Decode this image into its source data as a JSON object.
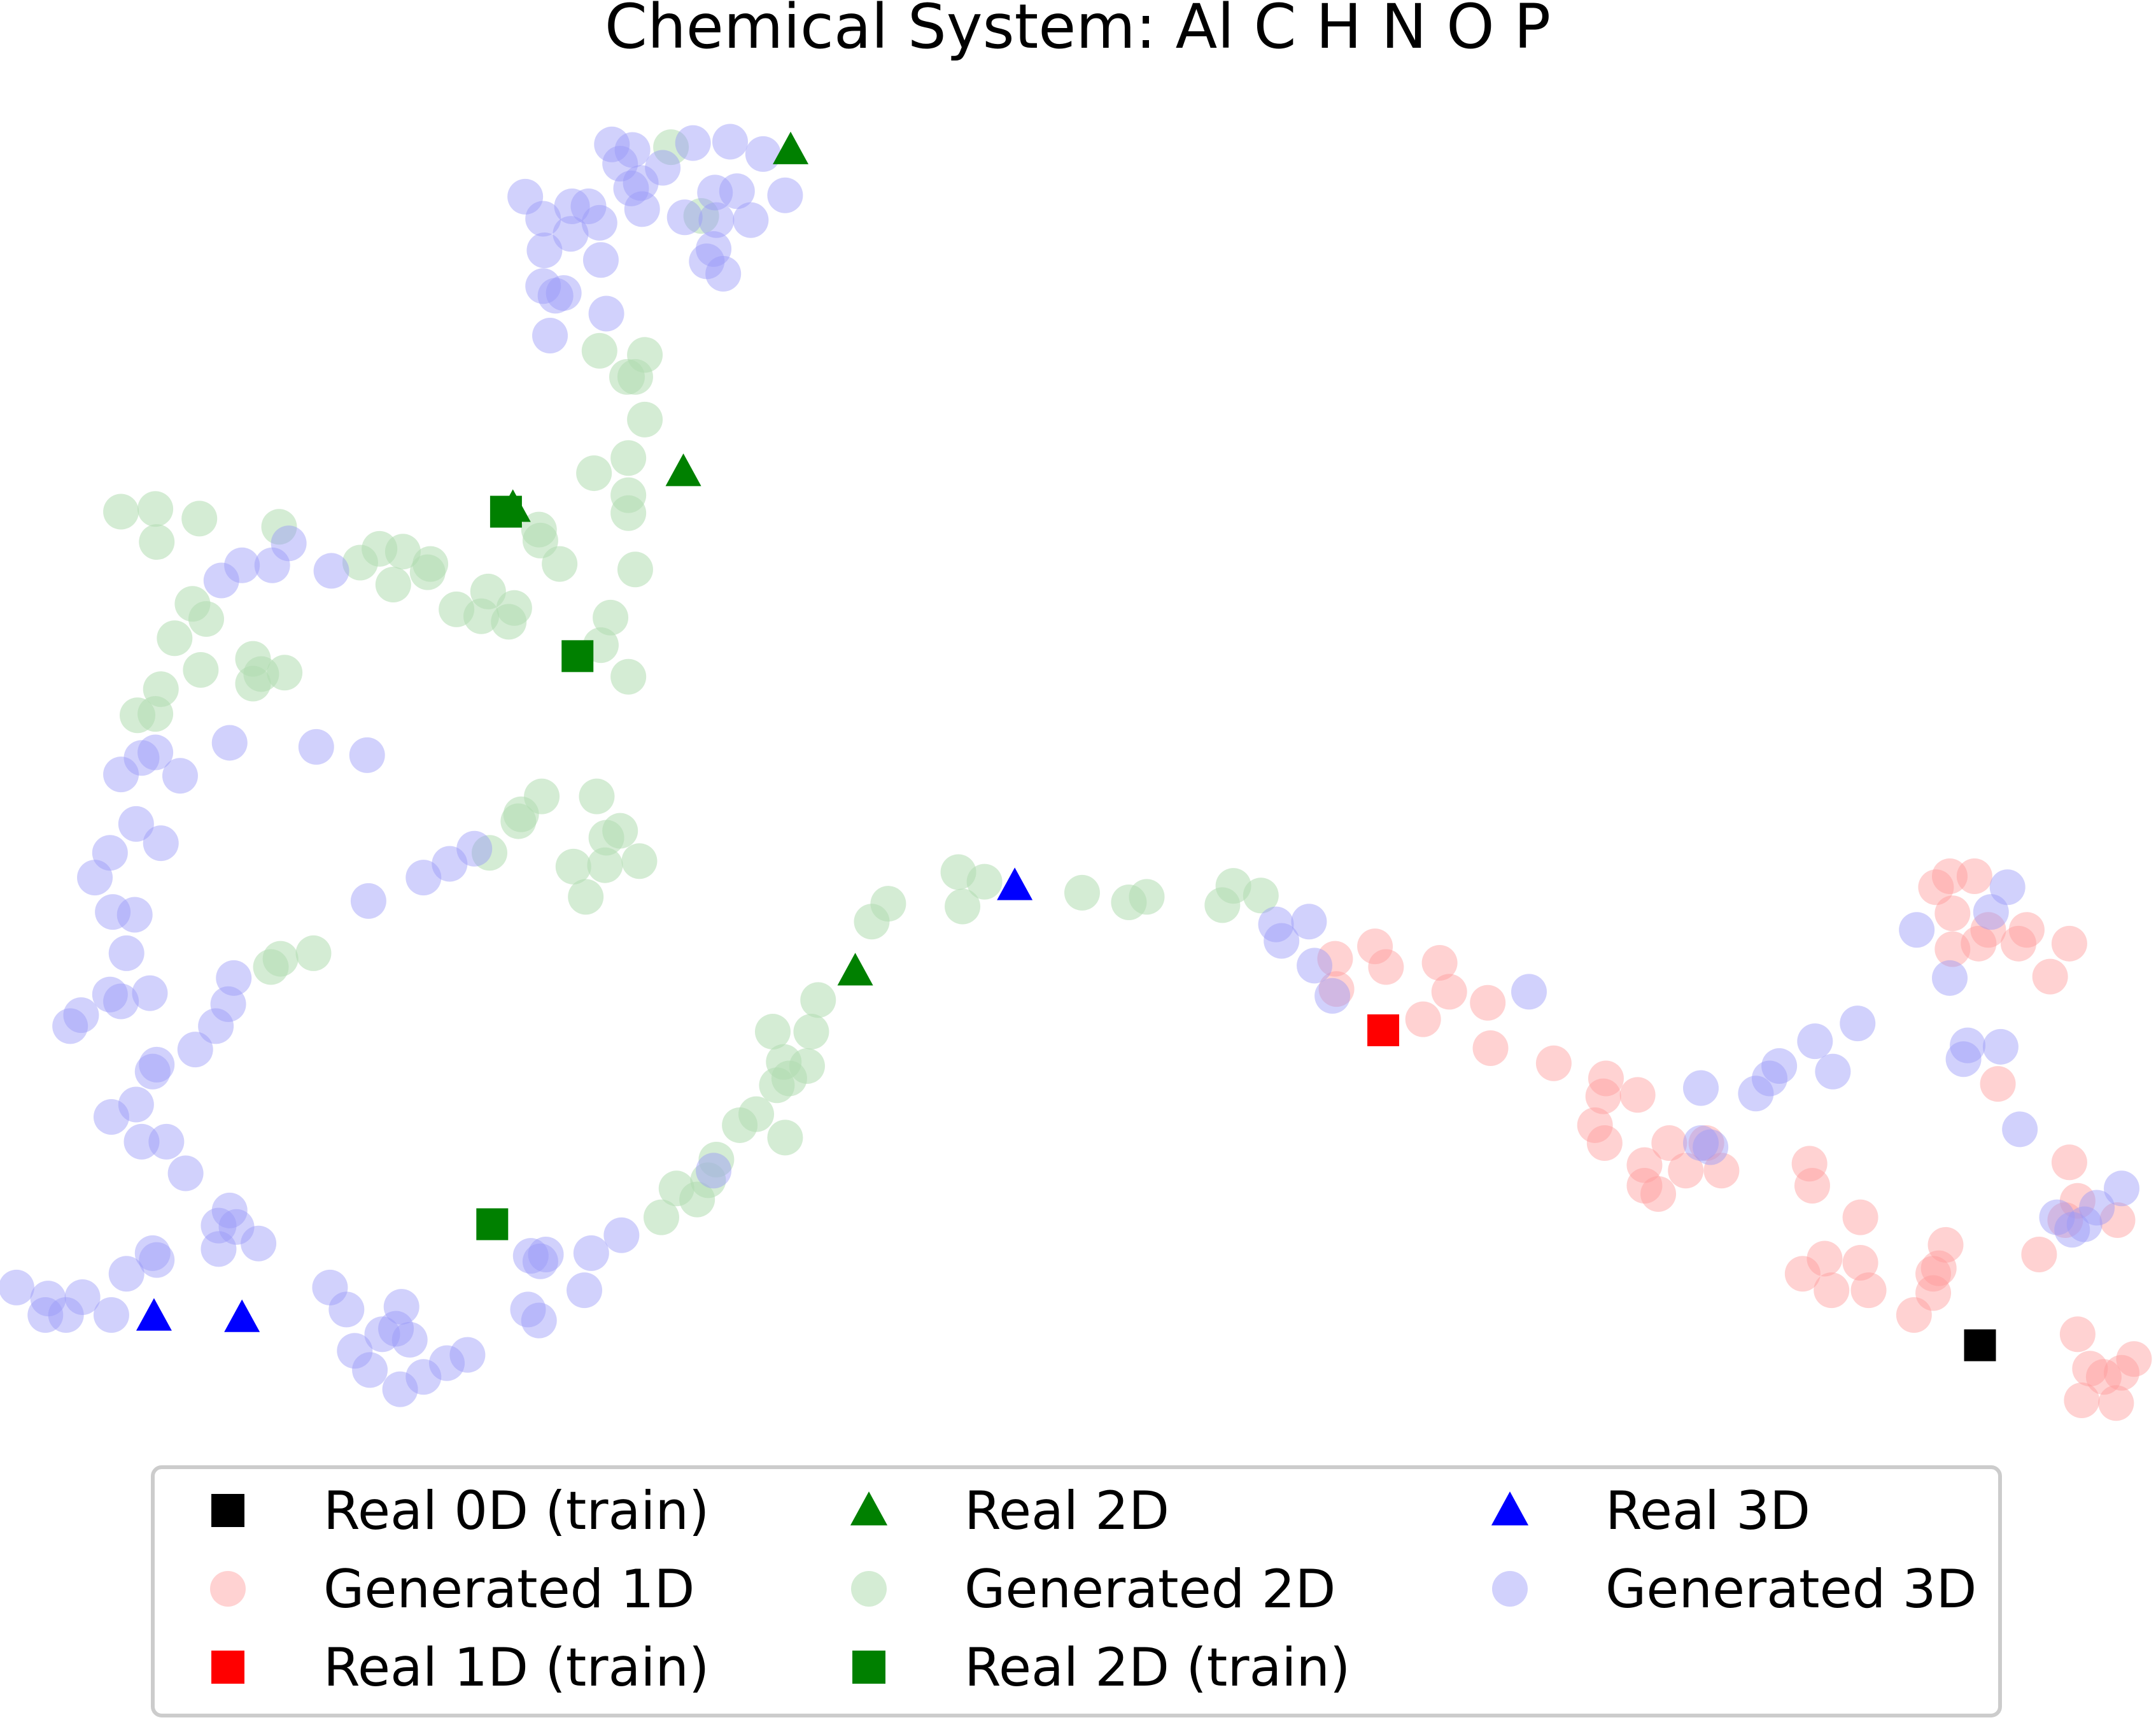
{
  "chart_data": {
    "type": "scatter",
    "title": "Chemical System: Al C H N O P",
    "xlabel": "",
    "ylabel": "",
    "axes_visible": false,
    "grid": false,
    "legend_position": "bottom",
    "legend_columns": 3,
    "xlim": [
      0,
      1568
    ],
    "ylim": [
      1050,
      0
    ],
    "series": [
      {
        "name": "Generated 1D",
        "marker": "circle",
        "color": "#ff9b9b",
        "points": [
          [
            1418,
            637
          ],
          [
            1408,
            645
          ],
          [
            1436,
            637
          ],
          [
            1420,
            664
          ],
          [
            1446,
            676
          ],
          [
            1474,
            676
          ],
          [
            1505,
            686
          ],
          [
            1420,
            690
          ],
          [
            1439,
            686
          ],
          [
            1468,
            686
          ],
          [
            1491,
            710
          ],
          [
            971,
            697
          ],
          [
            1000,
            688
          ],
          [
            1008,
            703
          ],
          [
            1047,
            700
          ],
          [
            1054,
            721
          ],
          [
            972,
            719
          ],
          [
            1035,
            741
          ],
          [
            1082,
            729
          ],
          [
            1084,
            762
          ],
          [
            1130,
            773
          ],
          [
            1168,
            784
          ],
          [
            1166,
            797
          ],
          [
            1191,
            796
          ],
          [
            1160,
            818
          ],
          [
            1167,
            831
          ],
          [
            1214,
            831
          ],
          [
            1241,
            831
          ],
          [
            1196,
            847
          ],
          [
            1226,
            851
          ],
          [
            1252,
            851
          ],
          [
            1196,
            862
          ],
          [
            1206,
            868
          ],
          [
            1453,
            788
          ],
          [
            1505,
            845
          ],
          [
            1316,
            846
          ],
          [
            1318,
            862
          ],
          [
            1353,
            885
          ],
          [
            1311,
            926
          ],
          [
            1327,
            915
          ],
          [
            1353,
            918
          ],
          [
            1332,
            938
          ],
          [
            1359,
            938
          ],
          [
            1415,
            905
          ],
          [
            1406,
            926
          ],
          [
            1410,
            922
          ],
          [
            1406,
            940
          ],
          [
            1392,
            956
          ],
          [
            1483,
            912
          ],
          [
            1502,
            887
          ],
          [
            1511,
            873
          ],
          [
            1540,
            887
          ],
          [
            1511,
            970
          ],
          [
            1520,
            995
          ],
          [
            1530,
            1001
          ],
          [
            1552,
            988
          ],
          [
            1543,
            998
          ],
          [
            1514,
            1018
          ],
          [
            1539,
            1020
          ]
        ]
      },
      {
        "name": "Generated 2D",
        "marker": "circle",
        "color": "#b0dcb0",
        "points": [
          [
            488,
            107
          ],
          [
            510,
            157
          ],
          [
            436,
            255
          ],
          [
            469,
            258
          ],
          [
            456,
            274
          ],
          [
            462,
            274
          ],
          [
            469,
            305
          ],
          [
            457,
            333
          ],
          [
            432,
            344
          ],
          [
            457,
            360
          ],
          [
            457,
            373
          ],
          [
            462,
            414
          ],
          [
            444,
            449
          ],
          [
            437,
            469
          ],
          [
            457,
            492
          ],
          [
            88,
            372
          ],
          [
            113,
            370
          ],
          [
            145,
            377
          ],
          [
            114,
            394
          ],
          [
            203,
            383
          ],
          [
            262,
            409
          ],
          [
            276,
            399
          ],
          [
            293,
            401
          ],
          [
            286,
            425
          ],
          [
            313,
            410
          ],
          [
            311,
            416
          ],
          [
            332,
            443
          ],
          [
            355,
            430
          ],
          [
            350,
            448
          ],
          [
            374,
            442
          ],
          [
            370,
            452
          ],
          [
            392,
            385
          ],
          [
            393,
            393
          ],
          [
            407,
            410
          ],
          [
            140,
            439
          ],
          [
            150,
            450
          ],
          [
            127,
            464
          ],
          [
            146,
            487
          ],
          [
            117,
            501
          ],
          [
            100,
            520
          ],
          [
            113,
            519
          ],
          [
            184,
            479
          ],
          [
            207,
            489
          ],
          [
            184,
            497
          ],
          [
            190,
            490
          ],
          [
            394,
            579
          ],
          [
            379,
            592
          ],
          [
            377,
            597
          ],
          [
            434,
            579
          ],
          [
            441,
            609
          ],
          [
            451,
            604
          ],
          [
            465,
            626
          ],
          [
            417,
            630
          ],
          [
            440,
            629
          ],
          [
            426,
            652
          ],
          [
            356,
            620
          ],
          [
            197,
            703
          ],
          [
            204,
            697
          ],
          [
            228,
            693
          ],
          [
            697,
            634
          ],
          [
            716,
            641
          ],
          [
            700,
            659
          ],
          [
            646,
            657
          ],
          [
            634,
            670
          ],
          [
            787,
            649
          ],
          [
            821,
            656
          ],
          [
            834,
            652
          ],
          [
            897,
            644
          ],
          [
            889,
            658
          ],
          [
            917,
            651
          ],
          [
            595,
            727
          ],
          [
            562,
            750
          ],
          [
            590,
            750
          ],
          [
            570,
            772
          ],
          [
            587,
            775
          ],
          [
            574,
            784
          ],
          [
            565,
            789
          ],
          [
            550,
            810
          ],
          [
            538,
            818
          ],
          [
            571,
            827
          ],
          [
            521,
            843
          ],
          [
            515,
            858
          ],
          [
            492,
            864
          ],
          [
            507,
            872
          ],
          [
            481,
            885
          ]
        ]
      },
      {
        "name": "Generated 3D",
        "marker": "circle",
        "color": "#9a9af8",
        "points": [
          [
            445,
            105
          ],
          [
            460,
            109
          ],
          [
            504,
            104
          ],
          [
            531,
            103
          ],
          [
            555,
            112
          ],
          [
            451,
            119
          ],
          [
            482,
            122
          ],
          [
            459,
            137
          ],
          [
            466,
            133
          ],
          [
            571,
            142
          ],
          [
            467,
            152
          ],
          [
            520,
            140
          ],
          [
            536,
            139
          ],
          [
            546,
            160
          ],
          [
            521,
            160
          ],
          [
            498,
            158
          ],
          [
            382,
            143
          ],
          [
            428,
            150
          ],
          [
            416,
            150
          ],
          [
            395,
            159
          ],
          [
            436,
            162
          ],
          [
            415,
            170
          ],
          [
            396,
            182
          ],
          [
            437,
            189
          ],
          [
            519,
            181
          ],
          [
            514,
            190
          ],
          [
            526,
            199
          ],
          [
            395,
            208
          ],
          [
            410,
            213
          ],
          [
            404,
            215
          ],
          [
            441,
            228
          ],
          [
            400,
            244
          ],
          [
            161,
            422
          ],
          [
            176,
            411
          ],
          [
            198,
            411
          ],
          [
            210,
            395
          ],
          [
            241,
            415
          ],
          [
            167,
            540
          ],
          [
            230,
            543
          ],
          [
            267,
            549
          ],
          [
            103,
            551
          ],
          [
            113,
            547
          ],
          [
            88,
            563
          ],
          [
            131,
            564
          ],
          [
            99,
            599
          ],
          [
            117,
            613
          ],
          [
            80,
            620
          ],
          [
            69,
            638
          ],
          [
            82,
            663
          ],
          [
            98,
            665
          ],
          [
            92,
            693
          ],
          [
            59,
            738
          ],
          [
            51,
            746
          ],
          [
            88,
            728
          ],
          [
            80,
            723
          ],
          [
            109,
            722
          ],
          [
            170,
            711
          ],
          [
            166,
            730
          ],
          [
            157,
            746
          ],
          [
            142,
            763
          ],
          [
            114,
            774
          ],
          [
            111,
            779
          ],
          [
            99,
            803
          ],
          [
            81,
            812
          ],
          [
            103,
            830
          ],
          [
            121,
            830
          ],
          [
            135,
            853
          ],
          [
            167,
            880
          ],
          [
            159,
            891
          ],
          [
            172,
            892
          ],
          [
            188,
            904
          ],
          [
            159,
            908
          ],
          [
            12,
            936
          ],
          [
            35,
            944
          ],
          [
            60,
            943
          ],
          [
            33,
            956
          ],
          [
            48,
            956
          ],
          [
            81,
            956
          ],
          [
            111,
            911
          ],
          [
            114,
            916
          ],
          [
            92,
            926
          ],
          [
            240,
            936
          ],
          [
            252,
            952
          ],
          [
            292,
            950
          ],
          [
            288,
            966
          ],
          [
            278,
            970
          ],
          [
            298,
            974
          ],
          [
            258,
            982
          ],
          [
            269,
            996
          ],
          [
            291,
            1010
          ],
          [
            308,
            1001
          ],
          [
            325,
            991
          ],
          [
            340,
            985
          ],
          [
            268,
            655
          ],
          [
            308,
            638
          ],
          [
            327,
            628
          ],
          [
            345,
            617
          ],
          [
            386,
            913
          ],
          [
            397,
            912
          ],
          [
            393,
            917
          ],
          [
            384,
            952
          ],
          [
            392,
            960
          ],
          [
            425,
            938
          ],
          [
            430,
            911
          ],
          [
            452,
            898
          ],
          [
            519,
            851
          ],
          [
            928,
            672
          ],
          [
            952,
            670
          ],
          [
            932,
            684
          ],
          [
            956,
            702
          ],
          [
            969,
            724
          ],
          [
            1112,
            721
          ],
          [
            1237,
            791
          ],
          [
            1277,
            795
          ],
          [
            1287,
            784
          ],
          [
            1294,
            775
          ],
          [
            1320,
            757
          ],
          [
            1333,
            779
          ],
          [
            1351,
            744
          ],
          [
            1244,
            834
          ],
          [
            1237,
            831
          ],
          [
            1394,
            676
          ],
          [
            1418,
            711
          ],
          [
            1448,
            663
          ],
          [
            1460,
            645
          ],
          [
            1431,
            760
          ],
          [
            1428,
            770
          ],
          [
            1455,
            761
          ],
          [
            1469,
            821
          ],
          [
            1496,
            885
          ],
          [
            1525,
            878
          ],
          [
            1543,
            864
          ],
          [
            1507,
            894
          ],
          [
            1516,
            890
          ]
        ]
      },
      {
        "name": "Real 0D (train)",
        "marker": "square",
        "color": "#000000",
        "points": [
          [
            1440,
            978
          ]
        ]
      },
      {
        "name": "Real 1D (train)",
        "marker": "square",
        "color": "#ff0000",
        "points": [
          [
            1006,
            749
          ]
        ]
      },
      {
        "name": "Real 2D (train)",
        "marker": "square",
        "color": "#008000",
        "points": [
          [
            368,
            372
          ],
          [
            420,
            477
          ],
          [
            358,
            890
          ]
        ]
      },
      {
        "name": "Real 2D",
        "marker": "triangle",
        "color": "#008000",
        "points": [
          [
            575,
            109
          ],
          [
            497,
            343
          ],
          [
            373,
            369
          ],
          [
            622,
            706
          ]
        ]
      },
      {
        "name": "Real 3D",
        "marker": "triangle",
        "color": "#0000ff",
        "points": [
          [
            738,
            644
          ],
          [
            112,
            957
          ],
          [
            176,
            958
          ]
        ]
      }
    ],
    "legend": [
      {
        "label": "Real 0D (train)",
        "marker": "square",
        "color": "#000000",
        "alpha": 1
      },
      {
        "label": "Generated 1D",
        "marker": "circle",
        "color": "#ff9b9b",
        "alpha": 0.45
      },
      {
        "label": "Real 1D (train)",
        "marker": "square",
        "color": "#ff0000",
        "alpha": 1
      },
      {
        "label": "Real 2D",
        "marker": "triangle",
        "color": "#008000",
        "alpha": 1
      },
      {
        "label": "Generated 2D",
        "marker": "circle",
        "color": "#b0dcb0",
        "alpha": 0.55
      },
      {
        "label": "Real 2D (train)",
        "marker": "square",
        "color": "#008000",
        "alpha": 1
      },
      {
        "label": "Real 3D",
        "marker": "triangle",
        "color": "#0000ff",
        "alpha": 1
      },
      {
        "label": "Generated 3D",
        "marker": "circle",
        "color": "#9a9af8",
        "alpha": 0.45
      }
    ]
  }
}
